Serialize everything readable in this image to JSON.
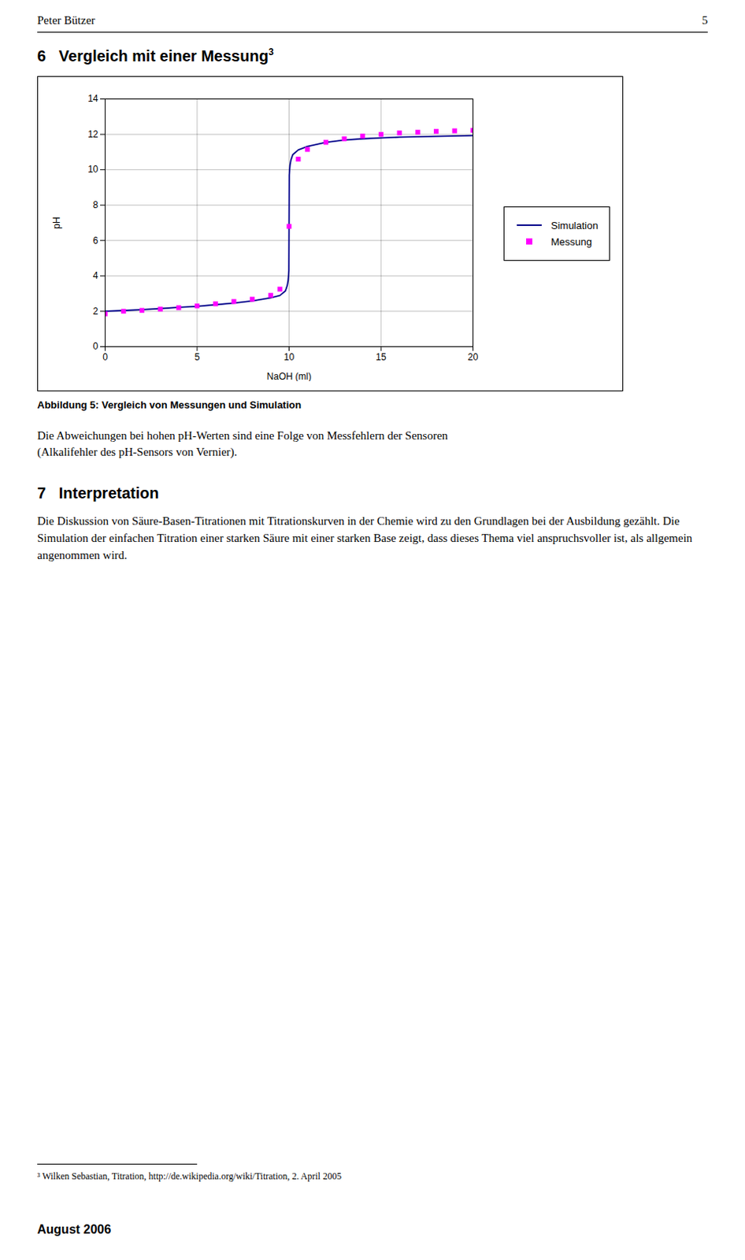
{
  "chart_data": {
    "type": "line",
    "annotations": [
      "Peter Bützer",
      "5",
      "6   Vergleich mit einer Messung",
      "3",
      "Die Abweichungen bei hohen pH-Werten sind eine Folge von Messfehlern der Sensoren\n(Alkalifehler des pH-Sensors von Vernier).",
      "7   Interpretation",
      "Die Diskussion von Säure-Basen-Titrationen mit Titrationskurven in der Chemie wird zu den Grundlagen bei der Ausbildung gezählt. Die Simulation der einfachen Titration einer starken Säure mit einer starken Base zeigt, dass dieses Thema viel anspruchsvoller ist, als allgemein angenommen wird.",
      "³ Wilken Sebastian, Titration, http://de.wikipedia.org/wiki/Titration, 2. April 2005",
      "August 2006"
    ],
    "caption": "Abbildung 5: Vergleich von Messungen und Simulation",
    "x_label": "NaOH (ml)",
    "y_label": "pH",
    "xlim": [
      0,
      20
    ],
    "ylim": [
      0,
      14
    ],
    "xticks": [
      0,
      5,
      10,
      15,
      20
    ],
    "yticks": [
      0,
      2,
      4,
      6,
      8,
      10,
      12,
      14
    ],
    "grid": true,
    "legend": "right",
    "series": [
      {
        "name": "Simulation",
        "type": "line",
        "line_style": "solid",
        "color": "#00008B",
        "x": [
          0.0,
          1.0,
          2.0,
          3.0,
          4.0,
          5.0,
          6.0,
          7.0,
          8.0,
          9.0,
          9.5,
          9.8,
          9.9,
          9.95,
          9.99,
          10.0,
          10.01,
          10.05,
          10.1,
          10.2,
          10.5,
          11.0,
          12.0,
          13.0,
          14.0,
          15.0,
          16.0,
          17.0,
          18.0,
          19.0,
          20.0
        ],
        "values": [
          2.0,
          2.04,
          2.09,
          2.15,
          2.22,
          2.28,
          2.37,
          2.46,
          2.58,
          2.76,
          2.89,
          3.15,
          3.45,
          3.75,
          4.3,
          7.0,
          9.7,
          10.25,
          10.55,
          10.85,
          11.12,
          11.32,
          11.55,
          11.68,
          11.75,
          11.8,
          11.84,
          11.87,
          11.89,
          11.91,
          11.93
        ]
      },
      {
        "name": "Messung",
        "type": "scatter",
        "marker": "square",
        "color": "#FF00FF",
        "x": [
          0.0,
          1.0,
          2.0,
          3.0,
          4.0,
          5.0,
          6.0,
          7.0,
          8.0,
          9.0,
          9.5,
          10.0,
          10.5,
          11.0,
          12.0,
          13.0,
          14.0,
          15.0,
          16.0,
          17.0,
          18.0,
          19.0,
          20.0
        ],
        "values": [
          1.85,
          2.0,
          2.05,
          2.12,
          2.2,
          2.3,
          2.42,
          2.55,
          2.68,
          2.9,
          3.25,
          6.8,
          10.6,
          11.15,
          11.55,
          11.75,
          11.9,
          12.0,
          12.08,
          12.12,
          12.17,
          12.2,
          12.23
        ]
      }
    ]
  }
}
